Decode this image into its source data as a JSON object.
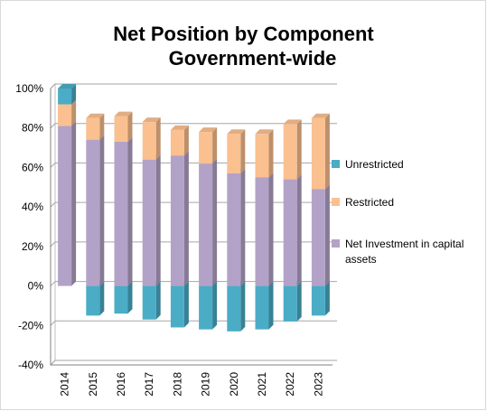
{
  "chart_data": {
    "type": "bar",
    "stacked": true,
    "title": [
      "Net Position by Component",
      "Government-wide"
    ],
    "categories": [
      "2014",
      "2015",
      "2016",
      "2017",
      "2018",
      "2019",
      "2020",
      "2021",
      "2022",
      "2023"
    ],
    "series": [
      {
        "name": "Net Investment in capital assets",
        "color": "#b3a2c7",
        "values": [
          81,
          74,
          73,
          64,
          66,
          62,
          57,
          55,
          54,
          49
        ]
      },
      {
        "name": "Restricted",
        "color": "#fac090",
        "values": [
          11,
          11,
          13,
          19,
          13,
          16,
          20,
          22,
          28,
          36
        ]
      },
      {
        "name": "Unrestricted",
        "color": "#4bacc6",
        "values": [
          8,
          -15,
          -14,
          -17,
          -21,
          -22,
          -23,
          -22,
          -18,
          -15
        ]
      }
    ],
    "ylim": [
      -40,
      100
    ],
    "yticks": [
      -40,
      -20,
      0,
      20,
      40,
      60,
      80,
      100
    ],
    "ytick_labels": [
      "-40%",
      "-20%",
      "0%",
      "20%",
      "40%",
      "60%",
      "80%",
      "100%"
    ],
    "grid": true,
    "legend_position": "right"
  }
}
